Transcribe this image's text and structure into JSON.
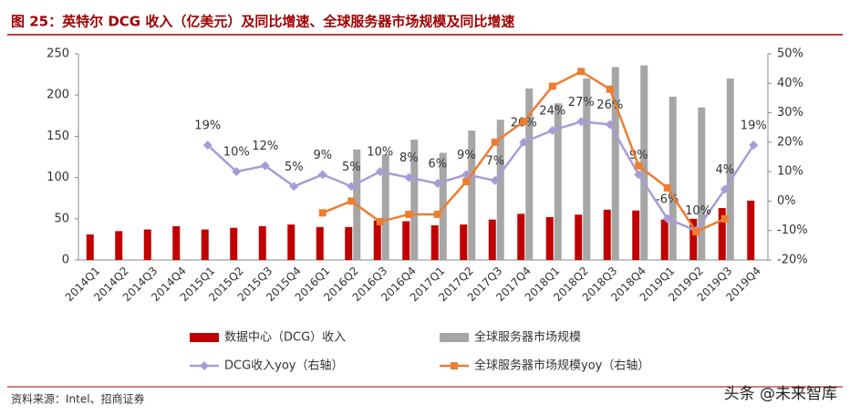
{
  "chart_data": {
    "type": "bar-line",
    "title": "图 25：英特尔 DCG 收入（亿美元）及同比增速、全球服务器市场规模及同比增速",
    "source": "资料来源：Intel、招商证券",
    "watermark": "头条 @未来智库",
    "categories": [
      "2014Q1",
      "2014Q2",
      "2014Q3",
      "2014Q4",
      "2015Q1",
      "2015Q2",
      "2015Q3",
      "2015Q4",
      "2016Q1",
      "2016Q2",
      "2016Q3",
      "2016Q4",
      "2017Q1",
      "2017Q2",
      "2017Q3",
      "2017Q4",
      "2018Q1",
      "2018Q2",
      "2018Q3",
      "2018Q4",
      "2019Q1",
      "2019Q2",
      "2019Q3",
      "2019Q4"
    ],
    "series": [
      {
        "name": "数据中心（DCG）收入",
        "type": "bar",
        "color": "#c00000",
        "values": [
          31,
          35,
          37,
          41,
          37,
          39,
          41,
          43,
          40,
          40,
          48,
          47,
          42,
          43,
          49,
          56,
          52,
          55,
          61,
          60,
          49,
          50,
          63,
          72
        ]
      },
      {
        "name": "全球服务器市场规模",
        "type": "bar",
        "color": "#a6a6a6",
        "values": [
          null,
          null,
          null,
          null,
          null,
          null,
          null,
          null,
          null,
          134,
          128,
          146,
          130,
          157,
          170,
          208,
          190,
          220,
          234,
          236,
          198,
          185,
          220,
          null
        ]
      },
      {
        "name": "DCG收入yoy（右轴）",
        "type": "line",
        "axis": "y2",
        "color": "#a99bd8",
        "values": [
          null,
          null,
          null,
          null,
          19,
          10,
          12,
          5,
          9,
          5,
          10,
          8,
          6,
          9,
          7,
          20,
          24,
          27,
          26,
          9,
          -6,
          -10,
          4,
          19
        ],
        "value_labels": [
          null,
          null,
          null,
          null,
          "19%",
          "10%",
          "12%",
          "5%",
          "9%",
          "5%",
          "10%",
          "8%",
          "6%",
          "9%",
          "7%",
          "20%",
          "24%",
          "27%",
          "26%",
          "9%",
          "-6%",
          "-10%",
          "4%",
          "19%"
        ]
      },
      {
        "name": "全球服务器市场规模yoy（右轴）",
        "type": "line",
        "axis": "y2",
        "color": "#ed7d31",
        "values": [
          null,
          null,
          null,
          null,
          null,
          null,
          null,
          null,
          -4,
          0,
          -7,
          -4.5,
          -4.5,
          6.6,
          20,
          27,
          39,
          44,
          38,
          12,
          4.5,
          -10.4,
          -6,
          null
        ]
      }
    ],
    "ylim": [
      0,
      250
    ],
    "yticks": [
      0,
      50,
      100,
      150,
      200,
      250
    ],
    "y2lim": [
      -20,
      50
    ],
    "y2ticks": [
      {
        "value": -20,
        "label": "-20%"
      },
      {
        "value": -10,
        "label": "-10%"
      },
      {
        "value": 0,
        "label": "0%"
      },
      {
        "value": 10,
        "label": "10%"
      },
      {
        "value": 20,
        "label": "20%"
      },
      {
        "value": 30,
        "label": "30%"
      },
      {
        "value": 40,
        "label": "40%"
      },
      {
        "value": 50,
        "label": "50%"
      }
    ]
  }
}
